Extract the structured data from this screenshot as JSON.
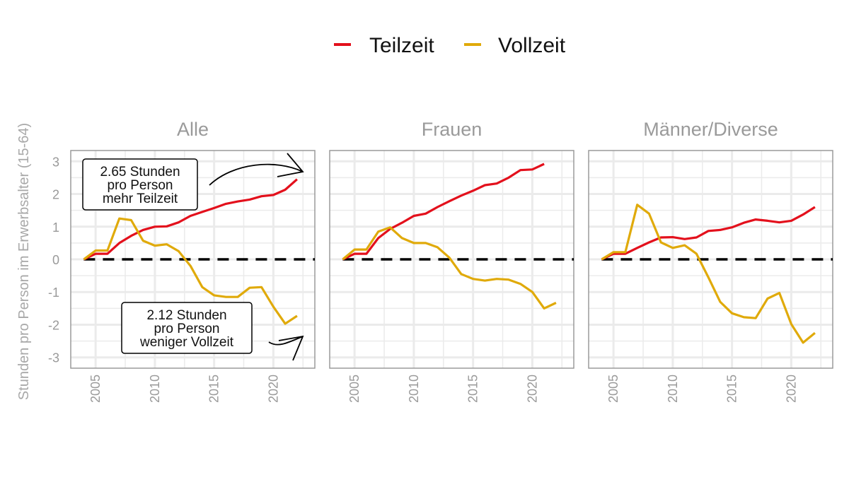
{
  "chart_data": {
    "type": "line",
    "ylabel": "Stunden pro Person im Erwerbsalter (15-64)",
    "xlabel": "",
    "ylim": [
      -3.33,
      3.33
    ],
    "xlim": [
      2002.9,
      2023.5
    ],
    "x_ticks": [
      2005,
      2010,
      2015,
      2020
    ],
    "y_ticks": [
      -3,
      -2,
      -1,
      0,
      1,
      2,
      3
    ],
    "grid": true,
    "legend": {
      "placement": "top",
      "entries": [
        "Teilzeit",
        "Vollzeit"
      ]
    },
    "colors": {
      "Teilzeit": "#e3101c",
      "Vollzeit": "#e0aa0a",
      "reference": "#000000"
    },
    "panels": [
      {
        "title": "Alle",
        "x": [
          2004,
          2005,
          2006,
          2007,
          2008,
          2009,
          2010,
          2011,
          2012,
          2013,
          2014,
          2015,
          2016,
          2017,
          2018,
          2019,
          2020,
          2021,
          2022
        ],
        "series": [
          {
            "name": "Teilzeit",
            "values": [
              0,
              0.17,
              0.17,
              0.5,
              0.72,
              0.9,
              1.0,
              1.01,
              1.13,
              1.33,
              1.45,
              1.57,
              1.7,
              1.77,
              1.83,
              1.93,
              1.97,
              2.13,
              2.45
            ]
          },
          {
            "name": "Vollzeit",
            "values": [
              0,
              0.27,
              0.27,
              1.25,
              1.2,
              0.57,
              0.42,
              0.46,
              0.25,
              -0.2,
              -0.85,
              -1.1,
              -1.15,
              -1.15,
              -0.87,
              -0.85,
              -1.45,
              -1.97,
              -1.73
            ]
          }
        ],
        "annotations": [
          {
            "lines": [
              "2.65 Stunden",
              "pro Person",
              "mehr Teilzeit"
            ]
          },
          {
            "lines": [
              "2.12 Stunden",
              "pro Person",
              "weniger Vollzeit"
            ]
          }
        ]
      },
      {
        "title": "Frauen",
        "x": [
          2004,
          2005,
          2006,
          2007,
          2008,
          2009,
          2010,
          2011,
          2012,
          2013,
          2014,
          2015,
          2016,
          2017,
          2018,
          2019,
          2020,
          2021,
          2022
        ],
        "series": [
          {
            "name": "Teilzeit",
            "values": [
              0,
              0.17,
              0.17,
              0.65,
              0.93,
              1.12,
              1.33,
              1.4,
              1.6,
              1.78,
              1.95,
              2.1,
              2.27,
              2.32,
              2.5,
              2.73,
              2.75,
              2.92,
              null
            ]
          },
          {
            "name": "Vollzeit",
            "values": [
              0,
              0.3,
              0.3,
              0.85,
              0.98,
              0.65,
              0.5,
              0.5,
              0.37,
              0.05,
              -0.45,
              -0.6,
              -0.65,
              -0.6,
              -0.62,
              -0.75,
              -1.0,
              -1.5,
              -1.33
            ]
          }
        ]
      },
      {
        "title": "Männer/Diverse",
        "x": [
          2004,
          2005,
          2006,
          2007,
          2008,
          2009,
          2010,
          2011,
          2012,
          2013,
          2014,
          2015,
          2016,
          2017,
          2018,
          2019,
          2020,
          2021,
          2022
        ],
        "series": [
          {
            "name": "Teilzeit",
            "values": [
              0,
              0.17,
              0.17,
              0.35,
              0.52,
              0.67,
              0.68,
              0.62,
              0.67,
              0.87,
              0.9,
              0.98,
              1.12,
              1.22,
              1.18,
              1.13,
              1.18,
              1.37,
              1.6
            ]
          },
          {
            "name": "Vollzeit",
            "values": [
              0,
              0.22,
              0.22,
              1.67,
              1.4,
              0.52,
              0.35,
              0.43,
              0.17,
              -0.55,
              -1.3,
              -1.65,
              -1.77,
              -1.8,
              -1.2,
              -1.03,
              -1.98,
              -2.55,
              -2.25
            ]
          }
        ]
      }
    ]
  }
}
